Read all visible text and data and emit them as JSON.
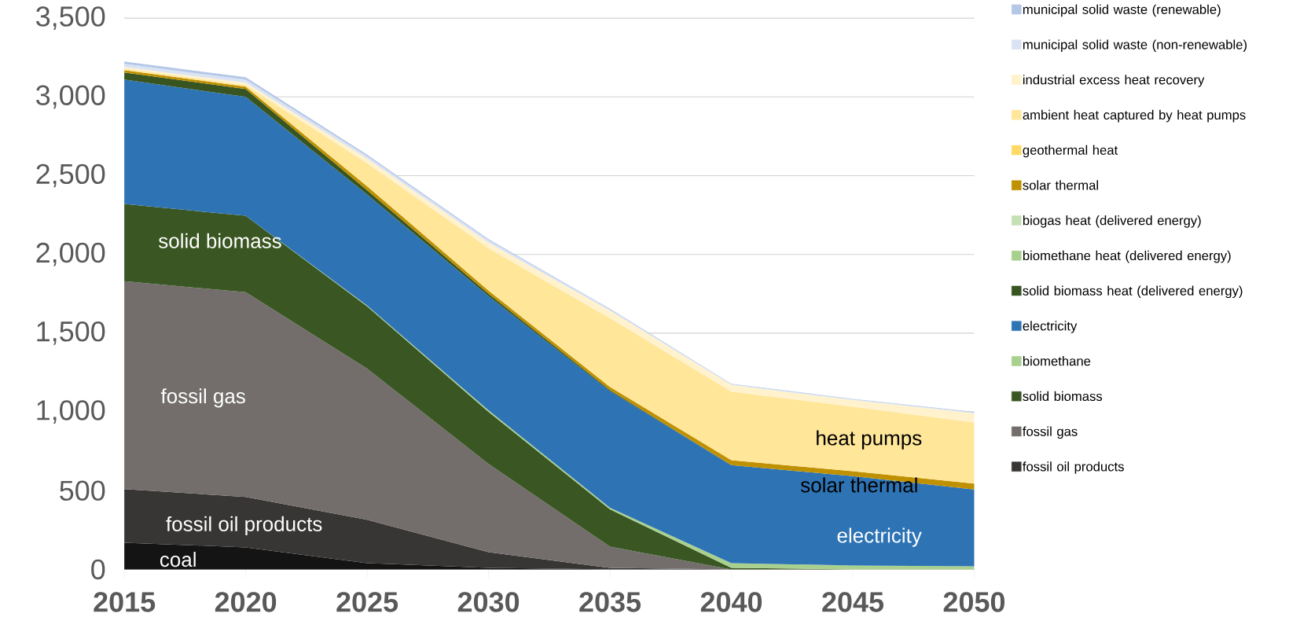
{
  "chart_data": {
    "type": "area",
    "stacked": true,
    "x": [
      2015,
      2020,
      2025,
      2030,
      2035,
      2040,
      2045,
      2050
    ],
    "xlim": [
      2015,
      2050
    ],
    "xticks": [
      2015,
      2020,
      2025,
      2030,
      2035,
      2040,
      2045,
      2050
    ],
    "ylim": [
      0,
      3500
    ],
    "yticks": [
      0,
      500,
      {
        "value": 1000,
        "label": "1,000"
      },
      {
        "value": 1500,
        "label": "1,500"
      },
      {
        "value": 2000,
        "label": "2,000"
      },
      {
        "value": 2500,
        "label": "2,500"
      },
      {
        "value": 3000,
        "label": "3,000"
      },
      {
        "value": 3500,
        "label": "3,500"
      }
    ],
    "grid": "y",
    "legend": "right",
    "series": [
      {
        "color": "#141414",
        "values": [
          170,
          140,
          40,
          10,
          0,
          null,
          null,
          null
        ]
      },
      {
        "name": "fossil oil products",
        "color": "#383634",
        "values": [
          340,
          320,
          275,
          100,
          10,
          0,
          null,
          null
        ]
      },
      {
        "name": "fossil gas",
        "color": "#736e6c",
        "values": [
          1320,
          1300,
          960,
          560,
          135,
          0,
          null,
          null
        ]
      },
      {
        "name": "solid biomass",
        "color": "#3a5623",
        "values": [
          490,
          485,
          395,
          330,
          237,
          10,
          0,
          null
        ]
      },
      {
        "name": "biomethane",
        "color": "#a9d18e",
        "values": [
          null,
          0,
          5,
          10,
          10,
          30,
          25,
          20
        ]
      },
      {
        "name": "electricity",
        "color": "#2e74b5",
        "values": [
          790,
          755,
          705,
          725,
          740,
          622,
          568,
          488
        ]
      },
      {
        "name": "solid biomass heat (delivered energy)",
        "color": "#385521",
        "values": [
          45,
          50,
          28,
          15,
          7,
          0,
          null,
          null
        ]
      },
      {
        "name": "biomethane heat (delivered energy)",
        "color": "#a8d08d",
        "values": [
          null,
          null,
          null,
          null,
          null,
          null,
          null,
          null
        ]
      },
      {
        "name": "biogas heat (delivered energy)",
        "color": "#c5e0b4",
        "values": [
          null,
          null,
          null,
          null,
          null,
          null,
          null,
          null
        ]
      },
      {
        "name": "solar thermal",
        "color": "#bf9000",
        "values": [
          15,
          15,
          25,
          20,
          20,
          32,
          30,
          37
        ]
      },
      {
        "name": "geothermal heat",
        "color": "#ffd966",
        "values": [
          null,
          null,
          null,
          null,
          null,
          null,
          null,
          null
        ]
      },
      {
        "name": "ambient heat captured by heat pumps",
        "color": "#ffe699",
        "values": [
          10,
          10,
          145,
          270,
          436,
          435,
          410,
          388
        ]
      },
      {
        "name": "industrial excess heat recovery",
        "color": "#fff2cc",
        "values": [
          10,
          15,
          30,
          35,
          48,
          42,
          42,
          59
        ]
      },
      {
        "name": "municipal solid waste (non-renewable)",
        "color": "#dae3f3",
        "values": [
          20,
          20,
          15,
          15,
          8,
          5,
          5,
          5
        ]
      },
      {
        "name": "municipal solid waste (renewable)",
        "color": "#b4c7e7",
        "values": [
          15,
          15,
          10,
          7,
          4,
          3,
          3,
          3
        ]
      }
    ],
    "annotations": [
      "solid biomass",
      "fossil gas",
      "fossil oil products",
      "coal",
      "heat pumps",
      "solar thermal",
      "electricity"
    ]
  }
}
